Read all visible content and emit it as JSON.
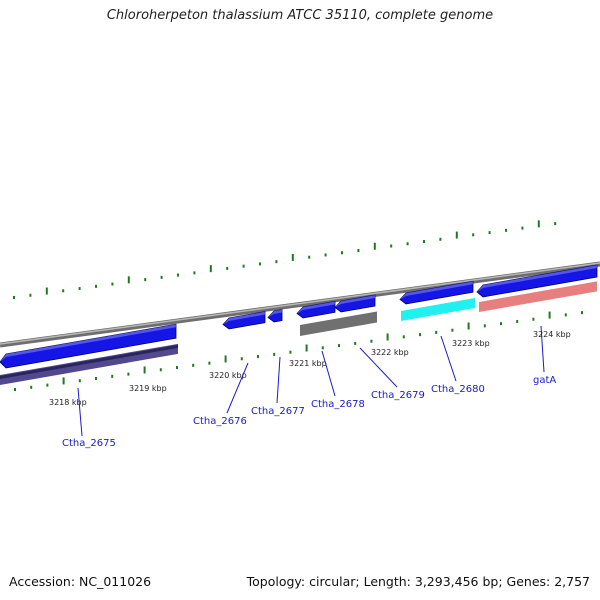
{
  "title": "Chloroherpeton thalassium ATCC 35110, complete genome",
  "footer": {
    "accession": "Accession: NC_011026",
    "topology": "Topology: circular; Length: 3,293,456 bp; Genes: 2,757"
  },
  "colors": {
    "forward_cds": "#1515e6",
    "forward_cds_edge": "#00006e",
    "reverse_lane": "#52488e",
    "gray_lane": "#707070",
    "cyan_lane": "#22f0f0",
    "pink_lane": "#e87f7f",
    "backbone": "#8c8c8c",
    "tick": "#1e7a1e",
    "label": "#1a1acc"
  },
  "ruler": [
    {
      "label": "3218 kbp"
    },
    {
      "label": "3219 kbp"
    },
    {
      "label": "3220 kbp"
    },
    {
      "label": "3221 kbp"
    },
    {
      "label": "3222 kbp"
    },
    {
      "label": "3223 kbp"
    },
    {
      "label": "3224 kbp"
    }
  ],
  "genes": [
    {
      "name": "Ctha_2675"
    },
    {
      "name": "Ctha_2676"
    },
    {
      "name": "Ctha_2677"
    },
    {
      "name": "Ctha_2678"
    },
    {
      "name": "Ctha_2679"
    },
    {
      "name": "Ctha_2680"
    },
    {
      "name": "gatA"
    }
  ]
}
